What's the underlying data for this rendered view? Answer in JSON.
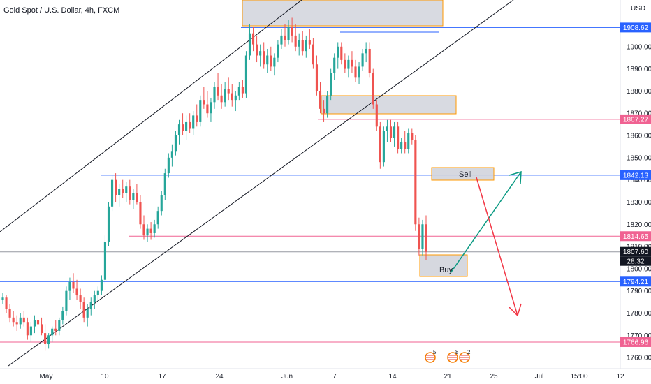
{
  "header": {
    "title": "Gold Spot / U.S. Dollar, 4h, FXCM",
    "currency": "USD"
  },
  "chart_data": {
    "type": "candlestick",
    "title": "Gold Spot / U.S. Dollar, 4h, FXCM",
    "y_axis": {
      "range": [
        1755,
        1921
      ],
      "ticks": [
        1760,
        1770,
        1780,
        1790,
        1800,
        1810,
        1820,
        1830,
        1840,
        1850,
        1860,
        1870,
        1880,
        1890,
        1900
      ],
      "labels": [
        "1760.00",
        "1770.00",
        "1780.00",
        "1790.00",
        "1800.00",
        "1810.00",
        "1820.00",
        "1830.00",
        "1840.00",
        "1850.00",
        "1860.00",
        "1870.00",
        "1880.00",
        "1890.00",
        "1900.00"
      ]
    },
    "x_axis": {
      "labels": [
        "May",
        "10",
        "17",
        "24",
        "Jun",
        "7",
        "14",
        "21",
        "25",
        "Jul",
        "15:00",
        "12"
      ]
    },
    "price_lines": [
      {
        "value": 1908.62,
        "label": "1908.62",
        "color": "#2962ff"
      },
      {
        "value": 1867.27,
        "label": "1867.27",
        "color": "#f06292"
      },
      {
        "value": 1842.13,
        "label": "1842.13",
        "color": "#2962ff"
      },
      {
        "value": 1814.65,
        "label": "1814.65",
        "color": "#f06292"
      },
      {
        "value": 1807.6,
        "label": "1807.60",
        "color": "#131722"
      },
      {
        "value": 1794.21,
        "label": "1794.21",
        "color": "#2962ff"
      },
      {
        "value": 1766.96,
        "label": "1766.96",
        "color": "#f06292"
      }
    ],
    "countdown": "28:32",
    "zones": [
      {
        "label": "Sell"
      },
      {
        "label": "Buy"
      }
    ],
    "events": [
      "5",
      "8",
      "2"
    ],
    "colors": {
      "up": "#26a69a",
      "down": "#ef5350",
      "zone": "#d1d4dc",
      "zone_border": "#ff9800"
    },
    "candles": [
      [
        1786,
        1789,
        1784,
        1787
      ],
      [
        1787,
        1788,
        1780,
        1782
      ],
      [
        1782,
        1784,
        1776,
        1778
      ],
      [
        1778,
        1781,
        1774,
        1776
      ],
      [
        1776,
        1779,
        1772,
        1775
      ],
      [
        1775,
        1780,
        1773,
        1778
      ],
      [
        1778,
        1781,
        1774,
        1776
      ],
      [
        1776,
        1778,
        1768,
        1770
      ],
      [
        1770,
        1776,
        1767,
        1774
      ],
      [
        1774,
        1779,
        1771,
        1777
      ],
      [
        1777,
        1780,
        1773,
        1775
      ],
      [
        1775,
        1778,
        1770,
        1771
      ],
      [
        1771,
        1775,
        1763,
        1766
      ],
      [
        1766,
        1771,
        1764,
        1770
      ],
      [
        1770,
        1774,
        1767,
        1773
      ],
      [
        1773,
        1777,
        1770,
        1772
      ],
      [
        1772,
        1778,
        1770,
        1777
      ],
      [
        1777,
        1783,
        1775,
        1781
      ],
      [
        1781,
        1792,
        1779,
        1790
      ],
      [
        1790,
        1796,
        1786,
        1794
      ],
      [
        1794,
        1798,
        1789,
        1791
      ],
      [
        1791,
        1795,
        1786,
        1788
      ],
      [
        1788,
        1791,
        1782,
        1785
      ],
      [
        1785,
        1787,
        1776,
        1778
      ],
      [
        1778,
        1784,
        1774,
        1782
      ],
      [
        1782,
        1787,
        1779,
        1785
      ],
      [
        1785,
        1790,
        1782,
        1788
      ],
      [
        1788,
        1792,
        1785,
        1790
      ],
      [
        1790,
        1797,
        1788,
        1795
      ],
      [
        1795,
        1815,
        1793,
        1812
      ],
      [
        1812,
        1830,
        1810,
        1828
      ],
      [
        1828,
        1842,
        1826,
        1840
      ],
      [
        1840,
        1843,
        1830,
        1833
      ],
      [
        1833,
        1838,
        1828,
        1836
      ],
      [
        1836,
        1840,
        1832,
        1834
      ],
      [
        1834,
        1839,
        1830,
        1837
      ],
      [
        1837,
        1840,
        1829,
        1831
      ],
      [
        1831,
        1836,
        1827,
        1834
      ],
      [
        1834,
        1838,
        1829,
        1830
      ],
      [
        1830,
        1833,
        1818,
        1820
      ],
      [
        1820,
        1824,
        1813,
        1815
      ],
      [
        1815,
        1820,
        1812,
        1818
      ],
      [
        1818,
        1821,
        1813,
        1816
      ],
      [
        1816,
        1822,
        1814,
        1820
      ],
      [
        1820,
        1828,
        1818,
        1826
      ],
      [
        1826,
        1835,
        1824,
        1833
      ],
      [
        1833,
        1845,
        1831,
        1843
      ],
      [
        1843,
        1852,
        1841,
        1850
      ],
      [
        1850,
        1856,
        1846,
        1853
      ],
      [
        1853,
        1862,
        1851,
        1860
      ],
      [
        1860,
        1867,
        1856,
        1865
      ],
      [
        1865,
        1870,
        1860,
        1862
      ],
      [
        1862,
        1869,
        1858,
        1866
      ],
      [
        1866,
        1870,
        1861,
        1863
      ],
      [
        1863,
        1871,
        1860,
        1869
      ],
      [
        1869,
        1874,
        1864,
        1866
      ],
      [
        1866,
        1878,
        1864,
        1876
      ],
      [
        1876,
        1882,
        1872,
        1874
      ],
      [
        1874,
        1880,
        1868,
        1870
      ],
      [
        1870,
        1877,
        1866,
        1875
      ],
      [
        1875,
        1884,
        1872,
        1882
      ],
      [
        1882,
        1888,
        1876,
        1878
      ],
      [
        1878,
        1883,
        1872,
        1875
      ],
      [
        1875,
        1884,
        1873,
        1881
      ],
      [
        1881,
        1886,
        1876,
        1879
      ],
      [
        1879,
        1883,
        1873,
        1876
      ],
      [
        1876,
        1880,
        1871,
        1878
      ],
      [
        1878,
        1884,
        1876,
        1882
      ],
      [
        1882,
        1885,
        1877,
        1879
      ],
      [
        1879,
        1898,
        1877,
        1896
      ],
      [
        1896,
        1910,
        1894,
        1906
      ],
      [
        1906,
        1909,
        1898,
        1901
      ],
      [
        1901,
        1905,
        1893,
        1896
      ],
      [
        1896,
        1901,
        1891,
        1898
      ],
      [
        1898,
        1902,
        1890,
        1892
      ],
      [
        1892,
        1899,
        1888,
        1896
      ],
      [
        1896,
        1900,
        1889,
        1891
      ],
      [
        1891,
        1897,
        1887,
        1895
      ],
      [
        1895,
        1903,
        1893,
        1901
      ],
      [
        1901,
        1908,
        1899,
        1905
      ],
      [
        1905,
        1910,
        1900,
        1903
      ],
      [
        1903,
        1912,
        1901,
        1909
      ],
      [
        1909,
        1913,
        1902,
        1905
      ],
      [
        1905,
        1910,
        1898,
        1900
      ],
      [
        1900,
        1906,
        1896,
        1903
      ],
      [
        1903,
        1907,
        1896,
        1898
      ],
      [
        1898,
        1905,
        1895,
        1903
      ],
      [
        1903,
        1908,
        1899,
        1901
      ],
      [
        1901,
        1904,
        1890,
        1892
      ],
      [
        1892,
        1896,
        1878,
        1880
      ],
      [
        1880,
        1884,
        1870,
        1872
      ],
      [
        1872,
        1876,
        1866,
        1870
      ],
      [
        1870,
        1880,
        1868,
        1878
      ],
      [
        1878,
        1890,
        1876,
        1888
      ],
      [
        1888,
        1897,
        1885,
        1895
      ],
      [
        1895,
        1902,
        1890,
        1900
      ],
      [
        1900,
        1902,
        1892,
        1894
      ],
      [
        1894,
        1897,
        1888,
        1890
      ],
      [
        1890,
        1896,
        1886,
        1894
      ],
      [
        1894,
        1898,
        1888,
        1891
      ],
      [
        1891,
        1894,
        1884,
        1886
      ],
      [
        1886,
        1893,
        1883,
        1891
      ],
      [
        1891,
        1899,
        1889,
        1897
      ],
      [
        1897,
        1902,
        1893,
        1899
      ],
      [
        1899,
        1902,
        1886,
        1888
      ],
      [
        1888,
        1890,
        1872,
        1874
      ],
      [
        1874,
        1876,
        1862,
        1864
      ],
      [
        1864,
        1866,
        1845,
        1848
      ],
      [
        1848,
        1864,
        1846,
        1862
      ],
      [
        1862,
        1867,
        1857,
        1864
      ],
      [
        1864,
        1867,
        1857,
        1859
      ],
      [
        1859,
        1866,
        1855,
        1864
      ],
      [
        1864,
        1866,
        1852,
        1854
      ],
      [
        1854,
        1859,
        1852,
        1857
      ],
      [
        1857,
        1862,
        1852,
        1854
      ],
      [
        1854,
        1863,
        1852,
        1861
      ],
      [
        1861,
        1863,
        1856,
        1858
      ],
      [
        1858,
        1860,
        1817,
        1820
      ],
      [
        1820,
        1823,
        1806,
        1809
      ],
      [
        1809,
        1822,
        1806,
        1820
      ],
      [
        1820,
        1824,
        1804,
        1807.6
      ]
    ]
  }
}
